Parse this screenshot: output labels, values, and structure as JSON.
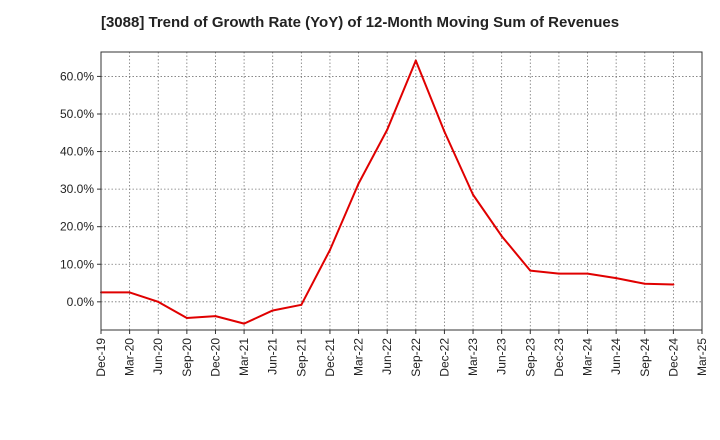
{
  "chart_data": {
    "type": "line",
    "title": "[3088]  Trend of Growth Rate (YoY) of 12-Month Moving Sum of Revenues",
    "xlabel": "",
    "ylabel": "",
    "x_ticks": [
      "Dec-19",
      "Mar-20",
      "Jun-20",
      "Sep-20",
      "Dec-20",
      "Mar-21",
      "Jun-21",
      "Sep-21",
      "Dec-21",
      "Mar-22",
      "Jun-22",
      "Sep-22",
      "Dec-22",
      "Mar-23",
      "Jun-23",
      "Sep-23",
      "Dec-23",
      "Mar-24",
      "Jun-24",
      "Sep-24",
      "Dec-24",
      "Mar-25"
    ],
    "y_ticks": [
      "0.0%",
      "10.0%",
      "20.0%",
      "30.0%",
      "40.0%",
      "50.0%",
      "60.0%"
    ],
    "y_tick_values": [
      0,
      10,
      20,
      30,
      40,
      50,
      60
    ],
    "ylim": [
      -7.5,
      66.5
    ],
    "grid": true,
    "line_color": "#e00000",
    "series": [
      {
        "x": [
          "Dec-19",
          "Mar-20",
          "Jun-20",
          "Sep-20",
          "Dec-20",
          "Mar-21",
          "Jun-21",
          "Sep-21",
          "Dec-21",
          "Mar-22",
          "Jun-22",
          "Sep-22",
          "Dec-22",
          "Mar-23",
          "Jun-23",
          "Sep-23",
          "Dec-23",
          "Mar-24",
          "Jun-24",
          "Sep-24",
          "Dec-24"
        ],
        "values": [
          2.5,
          2.5,
          0.0,
          -4.3,
          -3.8,
          -5.8,
          -2.3,
          -0.8,
          13.8,
          31.5,
          45.8,
          64.2,
          45.3,
          28.5,
          17.5,
          8.3,
          7.5,
          7.5,
          6.3,
          4.8,
          4.6
        ]
      }
    ]
  }
}
